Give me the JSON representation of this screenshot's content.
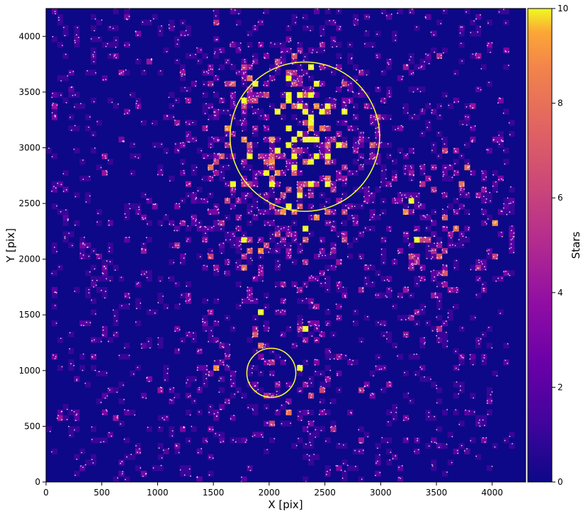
{
  "chart_data": {
    "type": "heatmap",
    "title": "",
    "xlabel": "X [pix]",
    "ylabel": "Y [pix]",
    "colorbar_label": "Stars",
    "colormap": "plasma",
    "xlim": [
      0,
      4300
    ],
    "ylim": [
      0,
      4250
    ],
    "clim": [
      0,
      10
    ],
    "bin_size": 50,
    "x_ticks": [
      0,
      500,
      1000,
      1500,
      2000,
      2500,
      3000,
      3500,
      4000
    ],
    "x_tick_labels": [
      "0",
      "500",
      "1000",
      "1500",
      "2000",
      "2500",
      "3000",
      "3500",
      "4000"
    ],
    "y_ticks": [
      0,
      500,
      1000,
      1500,
      2000,
      2500,
      3000,
      3500,
      4000
    ],
    "y_tick_labels": [
      "0",
      "500",
      "1000",
      "1500",
      "2000",
      "2500",
      "3000",
      "3500",
      "4000"
    ],
    "colorbar_ticks": [
      0,
      2,
      4,
      6,
      8,
      10
    ],
    "colorbar_tick_labels": [
      "0",
      "2",
      "4",
      "6",
      "8",
      "10"
    ],
    "density_hotspots": [
      {
        "x": 2300,
        "y": 3050,
        "peak": 9
      },
      {
        "x": 2150,
        "y": 3300,
        "peak": 7
      },
      {
        "x": 1900,
        "y": 2200,
        "peak": 5
      },
      {
        "x": 3500,
        "y": 2200,
        "peak": 5
      },
      {
        "x": 2000,
        "y": 1000,
        "peak": 4
      }
    ],
    "annotations": [
      {
        "shape": "circle",
        "cx": 2320,
        "cy": 3100,
        "r": 670,
        "color": "#ffff33"
      },
      {
        "shape": "circle",
        "cx": 2020,
        "cy": 980,
        "r": 220,
        "color": "#ffff33"
      }
    ],
    "point_color": "#ffffff",
    "grid": false,
    "legend": "none"
  }
}
